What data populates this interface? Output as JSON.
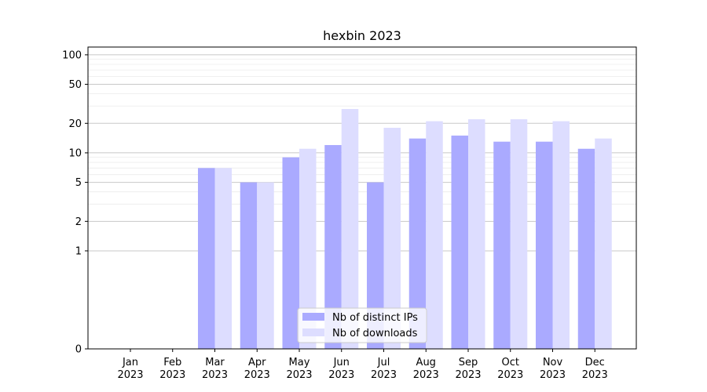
{
  "chart_data": {
    "type": "bar",
    "title": "hexbin 2023",
    "categories": [
      "Jan\n2023",
      "Feb\n2023",
      "Mar\n2023",
      "Apr\n2023",
      "May\n2023",
      "Jun\n2023",
      "Jul\n2023",
      "Aug\n2023",
      "Sep\n2023",
      "Oct\n2023",
      "Nov\n2023",
      "Dec\n2023"
    ],
    "series": [
      {
        "name": "Nb of distinct IPs",
        "color": "#aaaaff",
        "values": [
          0,
          0,
          7,
          5,
          9,
          12,
          5,
          14,
          15,
          13,
          13,
          11
        ]
      },
      {
        "name": "Nb of downloads",
        "color": "#ddddff",
        "values": [
          0,
          0,
          7,
          5,
          11,
          28,
          18,
          21,
          22,
          22,
          21,
          14
        ]
      }
    ],
    "yscale": "symlog",
    "ylim": [
      0,
      120
    ],
    "yticks": [
      0,
      1,
      2,
      5,
      10,
      20,
      50,
      100
    ],
    "ytick_labels": [
      "0",
      "1",
      "2",
      "5",
      "10",
      "20",
      "50",
      "100"
    ],
    "grid": true,
    "legend_position": "lower center",
    "xlabel": "",
    "ylabel": ""
  }
}
